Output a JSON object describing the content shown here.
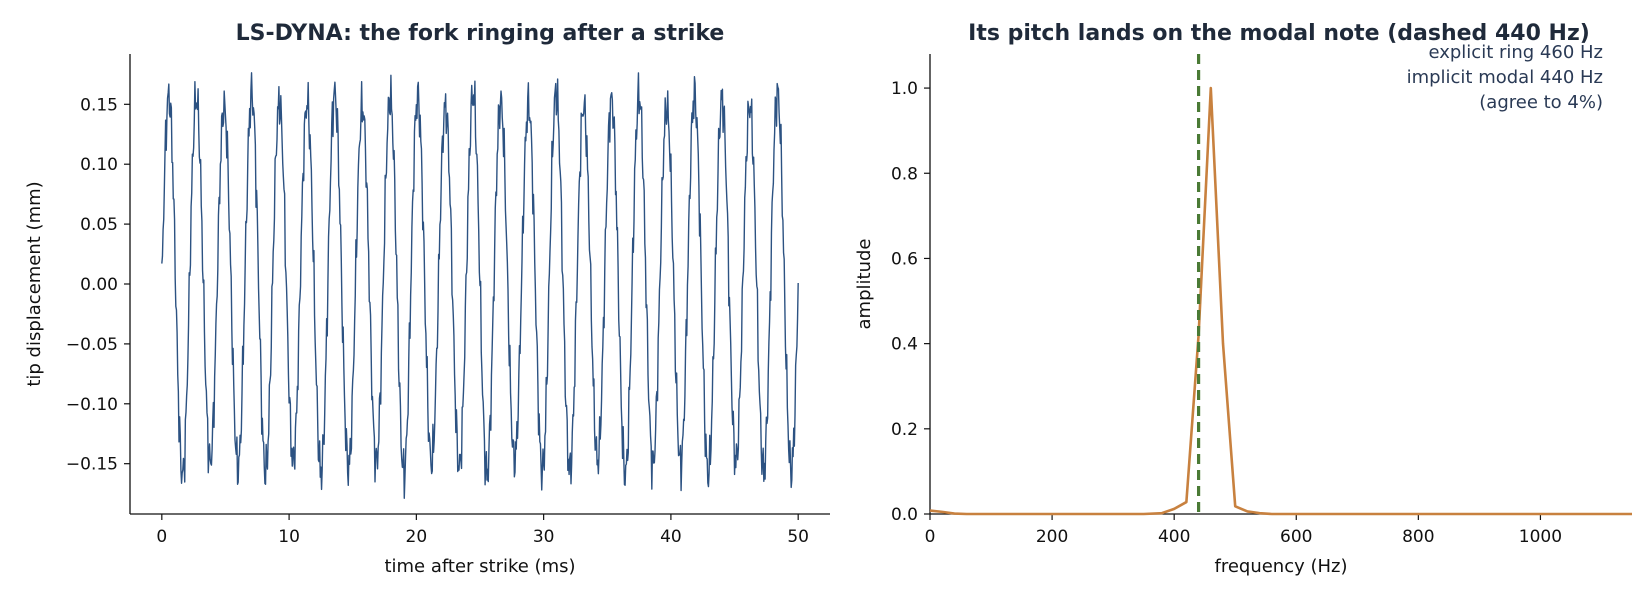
{
  "chart_data": [
    {
      "type": "line",
      "title": "LS-DYNA: the fork ringing after a strike",
      "xlabel": "time after strike (ms)",
      "ylabel": "tip displacement (mm)",
      "xlim": [
        -2.5,
        52.5
      ],
      "ylim": [
        -0.192,
        0.192
      ],
      "xticks": [
        0,
        10,
        20,
        30,
        40,
        50
      ],
      "xtick_labels": [
        "0",
        "10",
        "20",
        "30",
        "40",
        "50"
      ],
      "yticks": [
        0.15,
        0.1,
        0.05,
        0.0,
        -0.05,
        -0.1,
        -0.15
      ],
      "ytick_labels": [
        "0.15",
        "0.10",
        "0.05",
        "0.00",
        "−0.05",
        "−0.10",
        "−0.15"
      ],
      "grid": false,
      "series": [
        {
          "color": "#2c5282",
          "frequency_hz": 460,
          "amplitude_mm": 0.165,
          "x_range": [
            0,
            50
          ],
          "num_points": 1000,
          "description_of_shape": "sustained oscillation starting at 0, about 23 cycles over 50 ms, with small high-frequency ripples"
        }
      ]
    },
    {
      "type": "line",
      "title": "Its pitch lands on the modal note (dashed 440 Hz)",
      "xlabel": "frequency (Hz)",
      "ylabel": "amplitude",
      "xlim": [
        0,
        1150
      ],
      "ylim": [
        0,
        1.08
      ],
      "xticks": [
        0,
        200,
        400,
        600,
        800,
        1000
      ],
      "xtick_labels": [
        "0",
        "200",
        "400",
        "600",
        "800",
        "1000"
      ],
      "yticks": [
        0.0,
        0.2,
        0.4,
        0.6,
        0.8,
        1.0
      ],
      "ytick_labels": [
        "0.0",
        "0.2",
        "0.4",
        "0.6",
        "0.8",
        "1.0"
      ],
      "grid": false,
      "series": [
        {
          "color": "#c8813f",
          "x": [
            0,
            20,
            40,
            60,
            80,
            100,
            150,
            200,
            250,
            300,
            350,
            380,
            400,
            420,
            440,
            460,
            480,
            500,
            520,
            540,
            560,
            600,
            700,
            800,
            900,
            1000,
            1100,
            1150
          ],
          "y": [
            0.008,
            0.005,
            0.001,
            0.0,
            0.0,
            0.0,
            0.0,
            0.0,
            0.0,
            0.0,
            0.0,
            0.002,
            0.012,
            0.028,
            0.42,
            1.0,
            0.4,
            0.018,
            0.006,
            0.002,
            0.0,
            0.0,
            0.0,
            0.0,
            0.0,
            0.0,
            0.0,
            0.0
          ]
        }
      ],
      "reference_line": {
        "x": 440,
        "style": "dashed",
        "color": "#4a7a35"
      },
      "annotation": [
        "explicit ring 460 Hz",
        "implicit modal 440 Hz",
        "(agree to 4%)"
      ]
    }
  ]
}
